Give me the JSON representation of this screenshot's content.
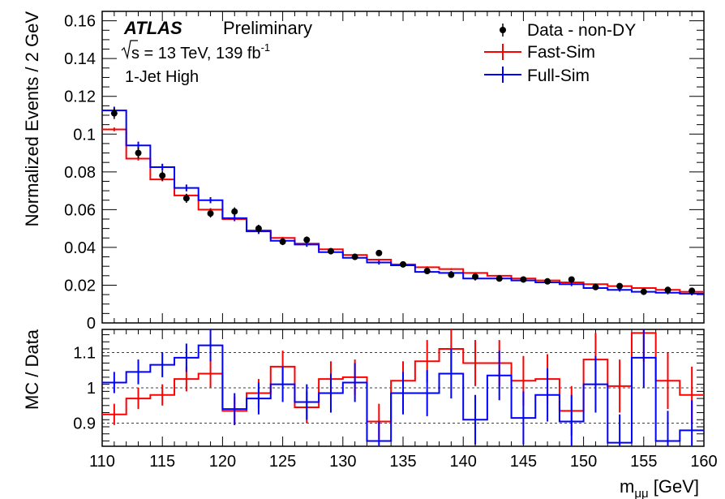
{
  "colors": {
    "data": "#000000",
    "fast_sim": "#ff0000",
    "full_sim": "#0000ff",
    "axis": "#000000"
  },
  "annotations": {
    "experiment": "ATLAS",
    "status": "Preliminary",
    "energy_prefix": "s = 13 TeV, 139 fb",
    "energy_sup": "-1",
    "selection": "1-Jet High"
  },
  "legend_placement": "top-right",
  "chart_data": [
    {
      "type": "line",
      "panel": "main",
      "ylabel": "Normalized Events / 2 GeV",
      "xlim": [
        110,
        160
      ],
      "ylim": [
        0,
        0.165
      ],
      "y_ticks": [
        0,
        0.02,
        0.04,
        0.06,
        0.08,
        0.1,
        0.12,
        0.14,
        0.16
      ],
      "y_tick_labels": [
        "0",
        "0.02",
        "0.04",
        "0.06",
        "0.08",
        "0.1",
        "0.12",
        "0.14",
        "0.16"
      ],
      "bin_edges": [
        110,
        112,
        114,
        116,
        118,
        120,
        122,
        124,
        126,
        128,
        130,
        132,
        134,
        136,
        138,
        140,
        142,
        144,
        146,
        148,
        150,
        152,
        154,
        156,
        158,
        160
      ],
      "series": [
        {
          "name": "Data - non-DY",
          "style": "points",
          "values": [
            0.111,
            0.09,
            0.078,
            0.066,
            0.058,
            0.059,
            0.05,
            0.043,
            0.044,
            0.038,
            0.035,
            0.037,
            0.031,
            0.0275,
            0.0255,
            0.0245,
            0.0235,
            0.023,
            0.022,
            0.023,
            0.019,
            0.0195,
            0.0165,
            0.0175,
            0.017
          ],
          "errors": [
            0.003,
            0.0028,
            0.0026,
            0.0024,
            0.0022,
            0.0022,
            0.002,
            0.0018,
            0.0018,
            0.0016,
            0.0016,
            0.0016,
            0.0014,
            0.0014,
            0.0013,
            0.0013,
            0.0013,
            0.0012,
            0.0012,
            0.0012,
            0.0011,
            0.0011,
            0.0011,
            0.0011,
            0.001
          ]
        },
        {
          "name": "Fast-Sim",
          "style": "step",
          "values": [
            0.1025,
            0.087,
            0.076,
            0.0675,
            0.06,
            0.055,
            0.049,
            0.045,
            0.042,
            0.039,
            0.036,
            0.0335,
            0.031,
            0.0295,
            0.0285,
            0.0265,
            0.025,
            0.0235,
            0.0225,
            0.0215,
            0.0205,
            0.0195,
            0.0185,
            0.0175,
            0.0165
          ],
          "errors": [
            0.001,
            0.001,
            0.001,
            0.0008,
            0.0008,
            0.0007,
            0.0007,
            0.0006,
            0.0006,
            0.0006,
            0.0005,
            0.0005,
            0.0005,
            0.0005,
            0.0005,
            0.0004,
            0.0004,
            0.0004,
            0.0004,
            0.0004,
            0.0004,
            0.0004,
            0.0004,
            0.0004,
            0.0004
          ]
        },
        {
          "name": "Full-Sim",
          "style": "step",
          "values": [
            0.1125,
            0.094,
            0.0825,
            0.0715,
            0.065,
            0.0555,
            0.0485,
            0.0435,
            0.0415,
            0.0375,
            0.0345,
            0.032,
            0.0305,
            0.027,
            0.0265,
            0.0235,
            0.0235,
            0.0225,
            0.0215,
            0.0205,
            0.0185,
            0.0175,
            0.0165,
            0.016,
            0.0155
          ],
          "errors": [
            0.002,
            0.002,
            0.0018,
            0.0018,
            0.0016,
            0.0016,
            0.0014,
            0.0014,
            0.0012,
            0.0012,
            0.0012,
            0.0011,
            0.0011,
            0.001,
            0.001,
            0.001,
            0.001,
            0.001,
            0.001,
            0.001,
            0.0009,
            0.0009,
            0.0009,
            0.0009,
            0.0009
          ]
        }
      ]
    },
    {
      "type": "line",
      "panel": "ratio",
      "ylabel": "MC / Data",
      "xlabel_main": "m",
      "xlabel_sub": "μμ",
      "xlabel_unit": " [GeV]",
      "xlim": [
        110,
        160
      ],
      "ylim": [
        0.835,
        1.165
      ],
      "y_ticks": [
        0.9,
        1,
        1.1
      ],
      "y_tick_labels": [
        "0.9",
        "1",
        "1.1"
      ],
      "x_ticks": [
        110,
        115,
        120,
        125,
        130,
        135,
        140,
        145,
        150,
        155,
        160
      ],
      "x_tick_labels": [
        "110",
        "115",
        "120",
        "125",
        "130",
        "135",
        "140",
        "145",
        "150",
        "155",
        "160"
      ],
      "grid_lines": [
        0.9,
        1,
        1.1
      ],
      "bin_edges": [
        110,
        112,
        114,
        116,
        118,
        120,
        122,
        124,
        126,
        128,
        130,
        132,
        134,
        136,
        138,
        140,
        142,
        144,
        146,
        148,
        150,
        152,
        154,
        156,
        158,
        160
      ],
      "series": [
        {
          "name": "Fast-Sim",
          "style": "step",
          "values": [
            0.925,
            0.97,
            0.98,
            1.025,
            1.04,
            0.935,
            0.985,
            1.06,
            0.945,
            1.025,
            1.03,
            0.905,
            1.02,
            1.075,
            1.11,
            1.07,
            1.07,
            1.02,
            1.025,
            0.935,
            1.08,
            1.005,
            1.155,
            1.02,
            0.98
          ],
          "errors": [
            0.03,
            0.03,
            0.03,
            0.035,
            0.04,
            0.04,
            0.04,
            0.045,
            0.045,
            0.05,
            0.05,
            0.05,
            0.055,
            0.06,
            0.065,
            0.065,
            0.065,
            0.07,
            0.07,
            0.07,
            0.075,
            0.075,
            0.08,
            0.08,
            0.08
          ]
        },
        {
          "name": "Full-Sim",
          "style": "step",
          "values": [
            1.015,
            1.045,
            1.065,
            1.085,
            1.12,
            0.94,
            0.97,
            1.01,
            0.96,
            0.985,
            1.015,
            0.85,
            0.985,
            0.985,
            1.04,
            0.91,
            1.035,
            0.915,
            0.98,
            0.905,
            1.01,
            0.845,
            1.085,
            0.85,
            0.88
          ],
          "errors": [
            0.03,
            0.035,
            0.035,
            0.04,
            0.045,
            0.045,
            0.045,
            0.05,
            0.05,
            0.055,
            0.055,
            0.055,
            0.06,
            0.065,
            0.07,
            0.07,
            0.07,
            0.075,
            0.075,
            0.075,
            0.08,
            0.08,
            0.085,
            0.085,
            0.085
          ]
        }
      ]
    }
  ]
}
